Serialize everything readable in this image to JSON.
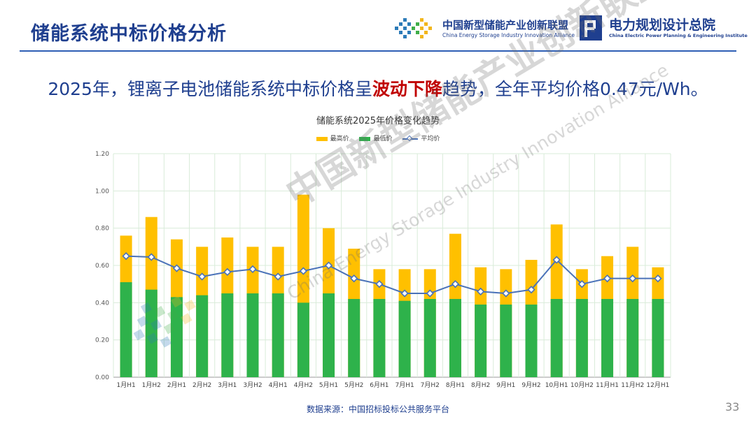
{
  "slide": {
    "title": "储能系统中标价格分析",
    "headline_pre": "2025年，锂离子电池储能系统中标价格呈",
    "headline_hl": "波动下降",
    "headline_post": "趋势，全年平均价格0.47元/Wh。",
    "source": "数据来源：中国招标投标公共服务平台",
    "page_number": "33"
  },
  "logos": {
    "alliance_cn": "中国新型储能产业创新联盟",
    "alliance_en": "China Energy Storage Industry Innovation Alliance",
    "institute_cn": "电力规划设计总院",
    "institute_en": "China Electric Power Planning & Engineering Institute"
  },
  "watermark": {
    "cn": "中国新型储能产业创新联盟",
    "en": "China Energy Storage Industry Innovation Alliance"
  },
  "colors": {
    "title_blue": "#1f3f8f",
    "highlight_red": "#c00000",
    "max_price": "#ffc000",
    "min_price": "#2eb24b",
    "avg_price": "#4a72b8",
    "grid": "#d9ecd9"
  },
  "chart_data": {
    "type": "bar",
    "title": "储能系统2025年价格变化趋势",
    "categories": [
      "1月H1",
      "1月H2",
      "2月H1",
      "2月H2",
      "3月H1",
      "3月H2",
      "4月H1",
      "4月H2",
      "5月H1",
      "5月H2",
      "6月H1",
      "7月H1",
      "7月H2",
      "8月H1",
      "8月H2",
      "9月H1",
      "9月H2",
      "10月H1",
      "10月H2",
      "11月H1",
      "11月H2",
      "12月H1"
    ],
    "series": [
      {
        "name": "最高价",
        "type": "bar",
        "values": [
          0.76,
          0.86,
          0.74,
          0.7,
          0.75,
          0.7,
          0.7,
          0.98,
          0.8,
          0.69,
          0.58,
          0.58,
          0.58,
          0.77,
          0.59,
          0.58,
          0.63,
          0.82,
          0.58,
          0.65,
          0.7,
          0.59
        ]
      },
      {
        "name": "最低价",
        "type": "bar",
        "values": [
          0.51,
          0.47,
          0.43,
          0.44,
          0.45,
          0.45,
          0.45,
          0.4,
          0.45,
          0.42,
          0.42,
          0.41,
          0.42,
          0.42,
          0.39,
          0.39,
          0.39,
          0.42,
          0.42,
          0.42,
          0.42,
          0.42
        ]
      },
      {
        "name": "平均价",
        "type": "line",
        "values": [
          0.65,
          0.645,
          0.585,
          0.54,
          0.565,
          0.58,
          0.54,
          0.57,
          0.6,
          0.53,
          0.5,
          0.45,
          0.45,
          0.5,
          0.46,
          0.45,
          0.47,
          0.63,
          0.5,
          0.53,
          0.53,
          0.53
        ]
      }
    ],
    "ylim": [
      0,
      1.2
    ],
    "yticks": [
      "0.00",
      "0.20",
      "0.40",
      "0.60",
      "0.80",
      "1.00",
      "1.20"
    ],
    "legend_position": "top",
    "grid": true
  }
}
